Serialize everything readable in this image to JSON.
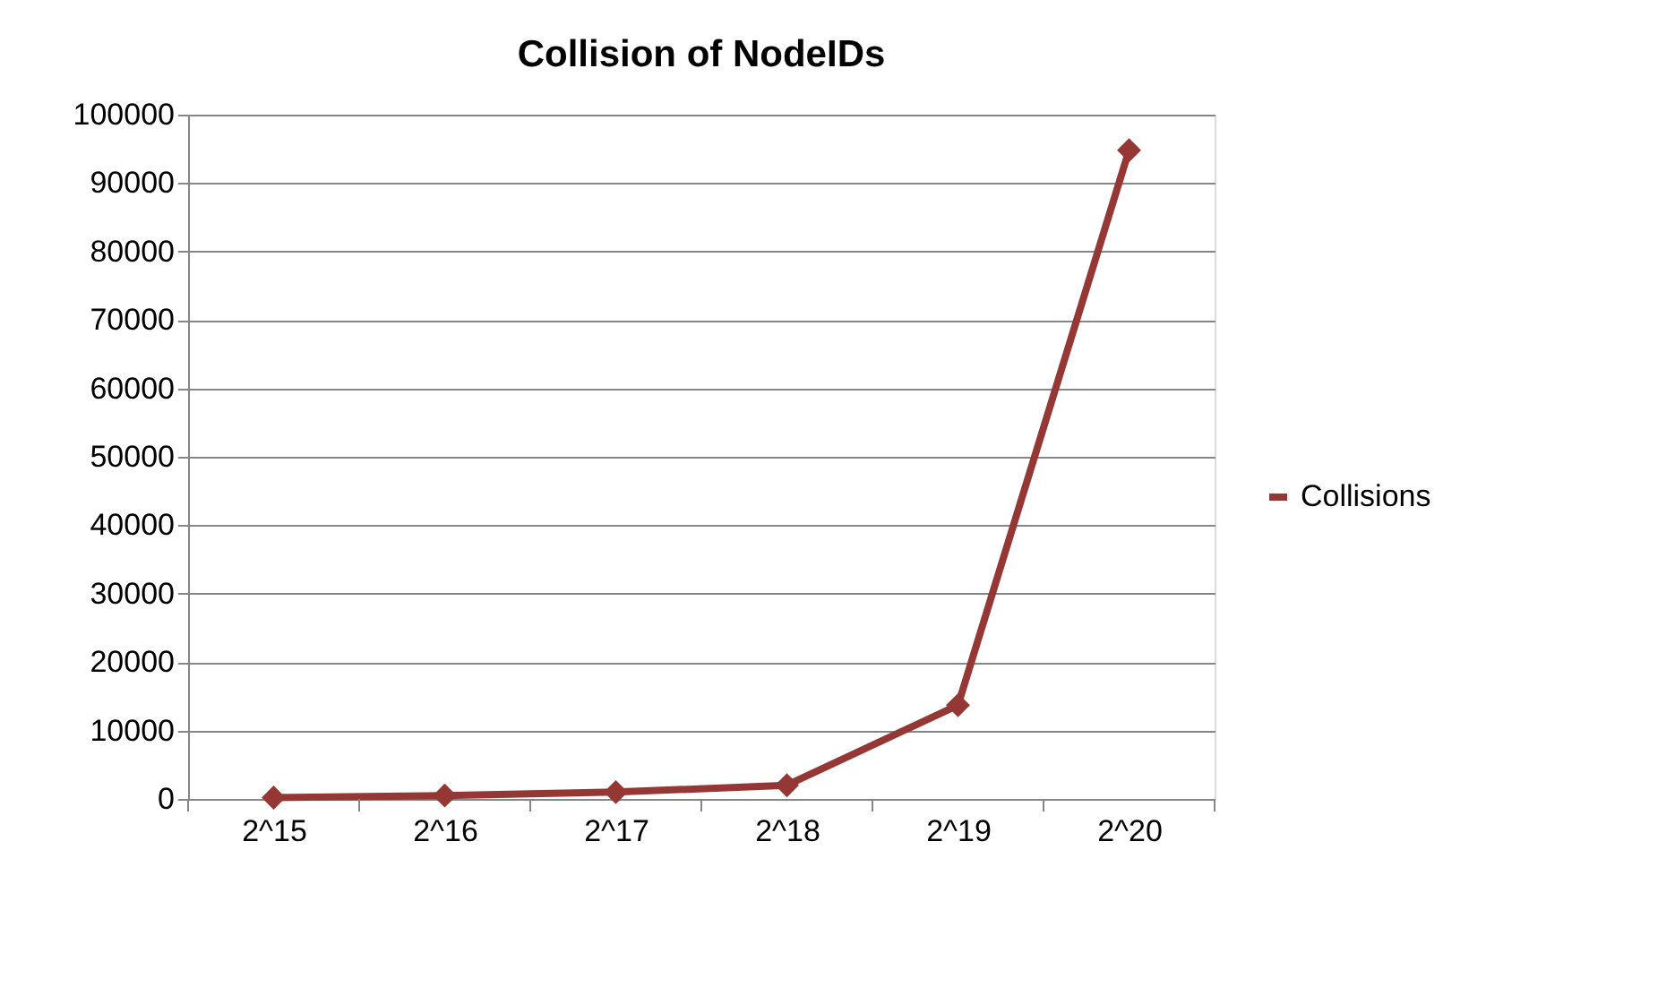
{
  "chart_data": {
    "type": "line",
    "title": "Collision of NodeIDs",
    "categories": [
      "2^15",
      "2^16",
      "2^17",
      "2^18",
      "2^19",
      "2^20"
    ],
    "series": [
      {
        "name": "Collisions",
        "color": "#953735",
        "values": [
          200,
          500,
          1000,
          2000,
          13700,
          94800
        ]
      }
    ],
    "ylim": [
      0,
      100000
    ],
    "yticks": [
      0,
      10000,
      20000,
      30000,
      40000,
      50000,
      60000,
      70000,
      80000,
      90000,
      100000
    ],
    "grid": "y",
    "legend": "right",
    "marker": "diamond",
    "line_style": "solid"
  }
}
